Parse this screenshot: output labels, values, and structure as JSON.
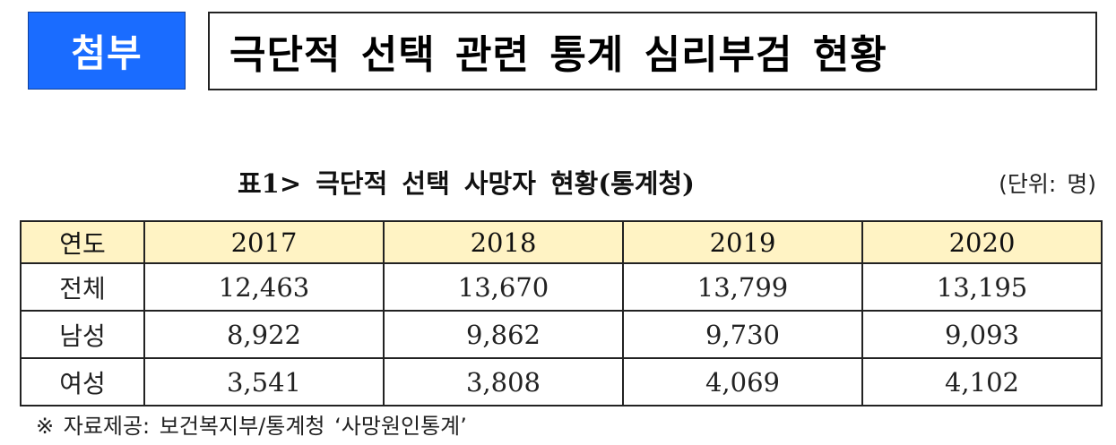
{
  "header": {
    "badge_label": "첨부",
    "title": "극단적 선택 관련 통계 심리부검 현황",
    "badge_color": "#1a6cff"
  },
  "table1": {
    "caption": "표1> 극단적 선택 사망자 현황(통계청)",
    "unit": "(단위: 명)",
    "header_fill": "#fff3c4",
    "columns": [
      "연도",
      "2017",
      "2018",
      "2019",
      "2020"
    ],
    "rows": [
      {
        "label": "전체",
        "values": [
          "12,463",
          "13,670",
          "13,799",
          "13,195"
        ]
      },
      {
        "label": "남성",
        "values": [
          "8,922",
          "9,862",
          "9,730",
          "9,093"
        ]
      },
      {
        "label": "여성",
        "values": [
          "3,541",
          "3,808",
          "4,069",
          "4,102"
        ]
      }
    ]
  },
  "footnote": "※ 자료제공: 보건복지부/통계청 ‘사망원인통계’"
}
